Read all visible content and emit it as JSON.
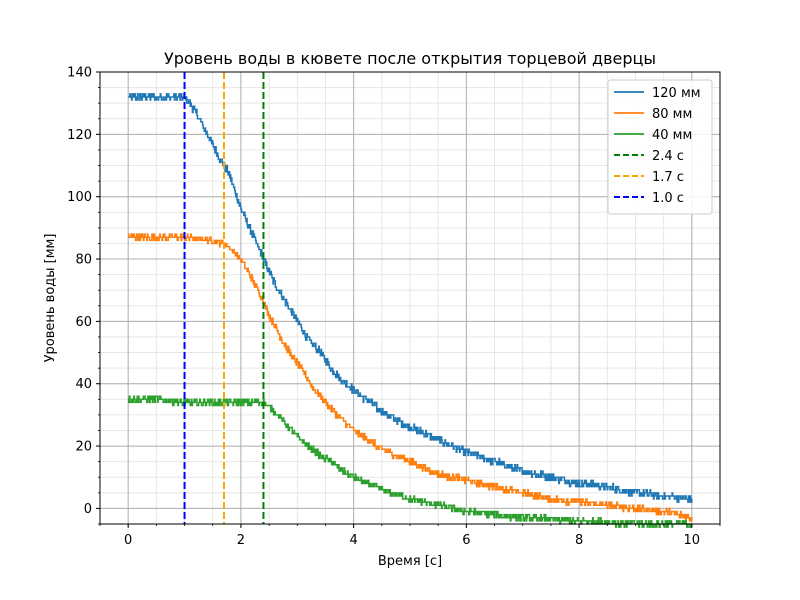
{
  "chart_data": {
    "type": "line",
    "title": "Уровень воды в кювете после открытия торцевой дверцы",
    "xlabel": "Время [с]",
    "ylabel": "Уровень воды [мм]",
    "xlim": [
      -0.5,
      10.5
    ],
    "ylim": [
      -5,
      140
    ],
    "x_major_ticks": [
      0,
      2,
      4,
      6,
      8,
      10
    ],
    "x_tick_labels": [
      "0",
      "2",
      "4",
      "6",
      "8",
      "10"
    ],
    "y_major_ticks": [
      0,
      20,
      40,
      60,
      80,
      100,
      120,
      140
    ],
    "y_tick_labels": [
      "0",
      "20",
      "40",
      "60",
      "80",
      "100",
      "120",
      "140"
    ],
    "x_minor_step": 0.5,
    "y_minor_step": 5,
    "grid": "major and minor",
    "legend_position": "top-right",
    "series": [
      {
        "name": "120 мм",
        "color": "#1f77b4",
        "style": "solid",
        "noise": 1.2,
        "x": [
          0,
          0.5,
          1.0,
          1.2,
          1.4,
          1.6,
          1.8,
          2.0,
          2.2,
          2.4,
          2.6,
          2.8,
          3.0,
          3.2,
          3.4,
          3.6,
          3.8,
          4.0,
          4.5,
          5.0,
          5.5,
          6.0,
          6.5,
          7.0,
          7.5,
          8.0,
          8.5,
          9.0,
          9.5,
          10.0
        ],
        "y": [
          132,
          132,
          132,
          127,
          120,
          113,
          107,
          96,
          88,
          80,
          72,
          66,
          60,
          54,
          50,
          45,
          41,
          38,
          31,
          26,
          22,
          18,
          15,
          12,
          10,
          8,
          7,
          5,
          4,
          3
        ]
      },
      {
        "name": "80 мм",
        "color": "#ff7f0e",
        "style": "solid",
        "noise": 1.0,
        "x": [
          0,
          0.5,
          1.0,
          1.5,
          1.7,
          1.9,
          2.1,
          2.3,
          2.5,
          2.7,
          2.9,
          3.1,
          3.3,
          3.5,
          3.7,
          4.0,
          4.5,
          5.0,
          5.5,
          6.0,
          6.5,
          7.0,
          7.5,
          8.0,
          8.5,
          9.0,
          9.5,
          10.0
        ],
        "y": [
          87,
          87,
          87,
          86,
          85,
          82,
          77,
          70,
          62,
          55,
          49,
          44,
          38,
          34,
          30,
          25,
          19,
          15,
          11,
          9,
          7,
          5,
          3,
          2,
          1,
          0,
          -1,
          -3
        ]
      },
      {
        "name": "40 мм",
        "color": "#2ca02c",
        "style": "solid",
        "noise": 1.0,
        "x": [
          0,
          0.5,
          1.0,
          1.5,
          2.0,
          2.4,
          2.6,
          2.8,
          3.0,
          3.2,
          3.4,
          3.6,
          3.8,
          4.0,
          4.5,
          5.0,
          5.5,
          6.0,
          6.5,
          7.0,
          7.5,
          8.0,
          8.5,
          9.0,
          9.5,
          10.0
        ],
        "y": [
          35,
          35,
          34,
          34,
          34,
          34,
          31,
          27,
          23,
          20,
          17,
          15,
          12,
          10,
          6,
          3,
          1,
          -1,
          -2,
          -3,
          -3.5,
          -4,
          -4.5,
          -5,
          -5,
          -5
        ]
      },
      {
        "name": "2.4 с",
        "color": "#008000",
        "style": "dashed",
        "vertical_x": 2.4
      },
      {
        "name": "1.7 с",
        "color": "#ffa500",
        "style": "dashed",
        "vertical_x": 1.7
      },
      {
        "name": "1.0 с",
        "color": "#0000ff",
        "style": "dashed",
        "vertical_x": 1.0
      }
    ]
  }
}
